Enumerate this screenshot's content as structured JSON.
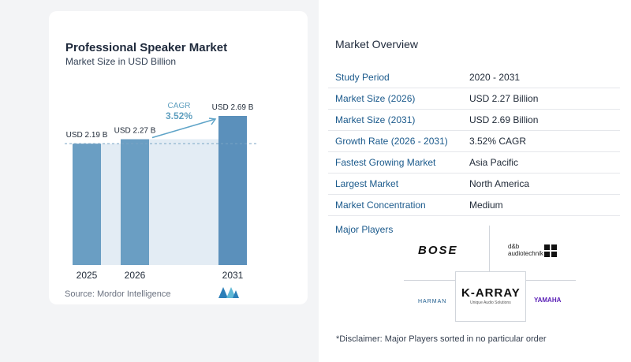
{
  "left_card": {
    "title": "Professional Speaker Market",
    "subtitle": "Market Size in USD Billion",
    "source": "Source:  Mordor Intelligence"
  },
  "chart_data": {
    "type": "bar",
    "title": "Professional Speaker Market",
    "subtitle": "Market Size in USD Billion",
    "categories": [
      "2025",
      "2026",
      "2031"
    ],
    "values": [
      2.19,
      2.27,
      2.69
    ],
    "data_labels": [
      "USD 2.19 B",
      "USD 2.27 B",
      "USD 2.69 B"
    ],
    "cagr_label": "CAGR",
    "cagr_value": "3.52%",
    "ylim": [
      0,
      2.69
    ],
    "grid": false,
    "colors": {
      "bar": "#6a9ec3",
      "bar_highlight": "#5b90bb",
      "shade": "#e3ecf4",
      "arrow": "#5fa4c8",
      "cagr": "#5f9fbf"
    }
  },
  "overview": {
    "title": "Market Overview",
    "rows": [
      {
        "key": "Study Period",
        "value": "2020 - 2031"
      },
      {
        "key": "Market Size (2026)",
        "value": "USD 2.27 Billion"
      },
      {
        "key": "Market Size (2031)",
        "value": "USD 2.69 Billion"
      },
      {
        "key": "Growth Rate (2026 - 2031)",
        "value": "3.52% CAGR"
      },
      {
        "key": "Fastest Growing Market",
        "value": "Asia Pacific"
      },
      {
        "key": "Largest Market",
        "value": "North America"
      },
      {
        "key": "Market Concentration",
        "value": "Medium"
      }
    ],
    "players_title": "Major Players",
    "players": {
      "bose": "BOSE",
      "db_line1": "d&b",
      "db_line2": "audiotechnik",
      "karray": "K-ARRAY",
      "karray_sub": "Unique Audio Solutions",
      "harman": "HARMAN",
      "yamaha": "YAMAHA"
    },
    "disclaimer": "*Disclaimer: Major Players sorted in no particular order"
  }
}
